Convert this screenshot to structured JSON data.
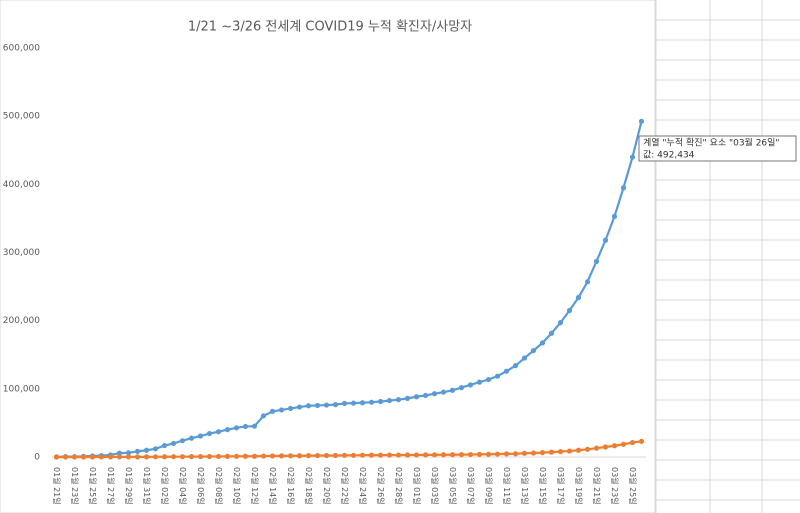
{
  "chart_data": {
    "type": "line",
    "title": "1/21  ~3/26  전세계 COVID19 누적 확진자/사망자",
    "categories": [
      "01월 21일",
      null,
      "01월 23일",
      null,
      "01월 25일",
      null,
      "01월 27일",
      null,
      "01월 29일",
      null,
      "01월 31일",
      null,
      "02월 02일",
      null,
      "02월 04일",
      null,
      "02월 06일",
      null,
      "02월 08일",
      null,
      "02월 10일",
      null,
      "02월 12일",
      null,
      "02월 14일",
      null,
      "02월 16일",
      null,
      "02월 18일",
      null,
      "02월 20일",
      null,
      "02월 22일",
      null,
      "02월 24일",
      null,
      "02월 26일",
      null,
      "02월 28일",
      null,
      "03월 01일",
      null,
      "03월 03일",
      null,
      "03월 05일",
      null,
      "03월 07일",
      null,
      "03월 09일",
      null,
      "03월 11일",
      null,
      "03월 13일",
      null,
      "03월 15일",
      null,
      "03월 17일",
      null,
      "03월 19일",
      null,
      "03월 21일",
      null,
      "03월 23일",
      null,
      "03월 25일",
      null
    ],
    "series": [
      {
        "name": "누적 확진",
        "color": "#5b9bd5",
        "values": [
          300,
          555,
          654,
          941,
          1434,
          2118,
          2927,
          5578,
          6166,
          8234,
          9927,
          12038,
          16787,
          19887,
          23898,
          27643,
          30802,
          34395,
          37129,
          40160,
          42769,
          44811,
          45229,
          60374,
          66887,
          69032,
          71226,
          73260,
          75138,
          75641,
          76199,
          76843,
          78599,
          78985,
          79570,
          80415,
          81397,
          82756,
          84124,
          86013,
          88371,
          90309,
          92844,
          95124,
          97886,
          101800,
          105836,
          109835,
          113582,
          118582,
          125865,
          134000,
          145193,
          156097,
          167449,
          181531,
          197146,
          214910,
          234000,
          257000,
          287000,
          318000,
          353000,
          395000,
          440000,
          492434
        ]
      },
      {
        "color": "#ed7d31",
        "values": [
          6,
          17,
          18,
          26,
          42,
          56,
          82,
          131,
          133,
          171,
          213,
          259,
          362,
          426,
          492,
          564,
          634,
          719,
          806,
          906,
          1013,
          1113,
          1118,
          1371,
          1523,
          1666,
          1770,
          1868,
          2007,
          2122,
          2247,
          2251,
          2458,
          2469,
          2629,
          2708,
          2770,
          2814,
          2872,
          2941,
          2996,
          3085,
          3160,
          3254,
          3348,
          3460,
          3558,
          3802,
          3988,
          4262,
          4615,
          4720,
          5404,
          5819,
          6440,
          7126,
          7905,
          8733,
          9867,
          11299,
          12973,
          14651,
          16505,
          18625,
          21181,
          22993
        ]
      }
    ],
    "ylim": [
      0,
      600000
    ],
    "yticks": [
      0,
      {
        "value": 100000,
        "label": "100,000"
      },
      {
        "value": 200000,
        "label": "200,000"
      },
      {
        "value": 300000,
        "label": "300,000"
      },
      {
        "value": 400000,
        "label": "400,000"
      },
      {
        "value": 500000,
        "label": "500,000"
      },
      {
        "value": 600000,
        "label": "600,000"
      }
    ],
    "grid": false,
    "tooltip": {
      "line1": "계열 \"누적 확진\" 요소 \"03월 26일\"",
      "line2": "값: 492,434"
    }
  }
}
